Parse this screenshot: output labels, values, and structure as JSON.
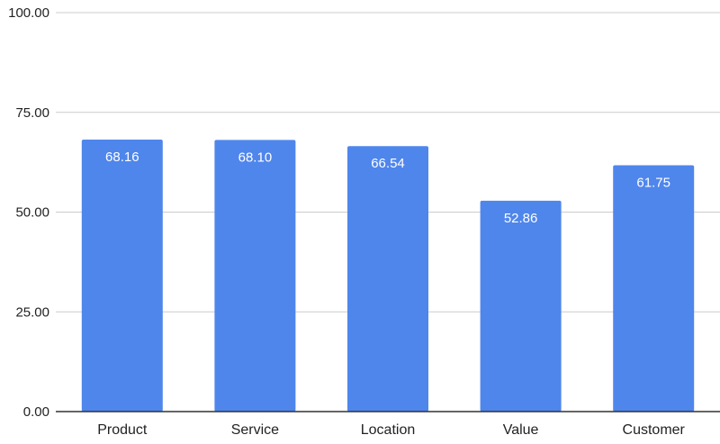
{
  "chart_data": {
    "type": "bar",
    "title": "",
    "xlabel": "",
    "ylabel": "",
    "categories": [
      "Product",
      "Service",
      "Location",
      "Value",
      "Customer"
    ],
    "values": [
      68.16,
      68.1,
      66.54,
      52.86,
      61.75
    ],
    "value_labels": [
      "68.16",
      "68.10",
      "66.54",
      "52.86",
      "61.75"
    ],
    "ylim": [
      0,
      100
    ],
    "yticks": [
      0,
      25,
      50,
      75,
      100
    ],
    "ytick_labels": [
      "0.00",
      "25.00",
      "50.00",
      "75.00",
      "100.00"
    ],
    "grid": true,
    "legend": "none",
    "colors": {
      "bar": "#4f86ec",
      "grid": "#cccccc",
      "axis": "#333333",
      "data_label": "#ffffff"
    }
  }
}
